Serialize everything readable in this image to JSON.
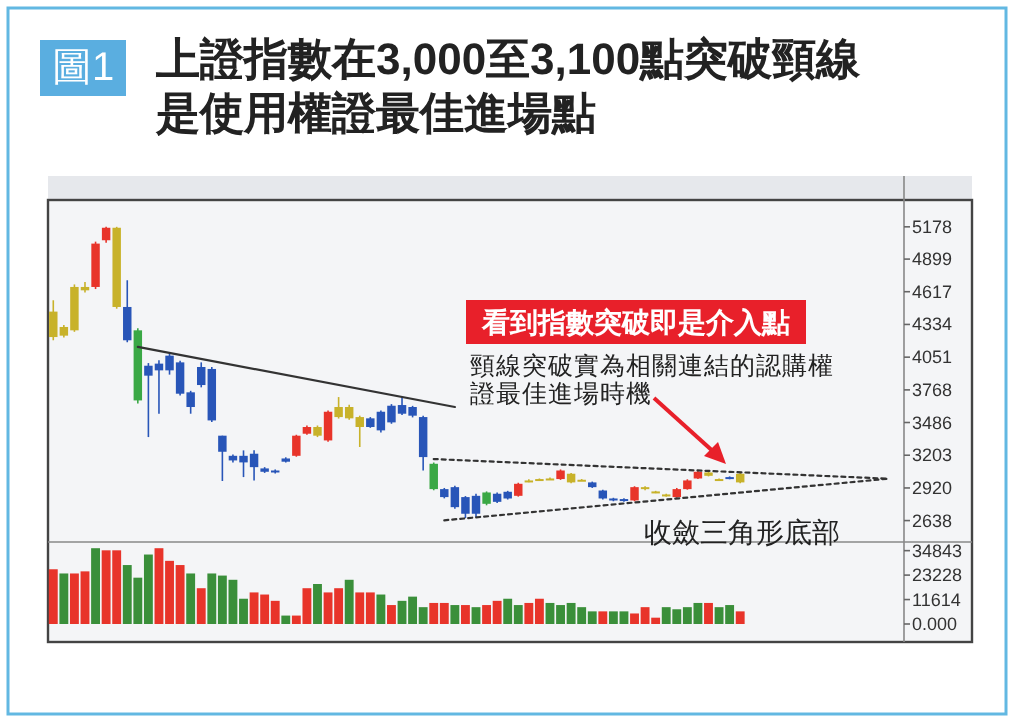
{
  "chart_data": [
    {
      "type": "candlestick",
      "title": "上證指數在3,000至3,100點突破頸線是使用權證最佳進場點",
      "categories": [
        null,
        null,
        null,
        null,
        null,
        null,
        null,
        null,
        null,
        null,
        null,
        null,
        null,
        null,
        null,
        null,
        null,
        null,
        null,
        null,
        null,
        null,
        null,
        null,
        null,
        null,
        null,
        null,
        null,
        null,
        null,
        null,
        null,
        null,
        null,
        null,
        null,
        null,
        null,
        null,
        null,
        null,
        null,
        null,
        null,
        null,
        null,
        null,
        null,
        null,
        null,
        null,
        null,
        null,
        null,
        null,
        null,
        null,
        null,
        null,
        null,
        null,
        null,
        null,
        null,
        null,
        null,
        null,
        null,
        null,
        null,
        null,
        null,
        null,
        null,
        null,
        null,
        null,
        null,
        null,
        null
      ],
      "ohlc": [
        [
          4225,
          4543,
          4197,
          4445
        ],
        [
          4237,
          4330,
          4220,
          4312
        ],
        [
          4283,
          4680,
          4270,
          4658
        ],
        [
          4629,
          4700,
          4610,
          4658
        ],
        [
          4658,
          5050,
          4640,
          5033
        ],
        [
          5062,
          5178,
          5040,
          5170
        ],
        [
          5170,
          5178,
          4470,
          4485
        ],
        [
          4485,
          4716,
          4180,
          4197
        ],
        [
          4283,
          4300,
          3650,
          3677
        ],
        [
          3977,
          4000,
          3360,
          3891
        ],
        [
          3995,
          4024,
          3562,
          3937
        ],
        [
          4064,
          4081,
          3900,
          3937
        ],
        [
          4006,
          4020,
          3720,
          3735
        ],
        [
          3747,
          3760,
          3562,
          3620
        ],
        [
          3966,
          4006,
          3790,
          3810
        ],
        [
          3949,
          3966,
          3490,
          3504
        ],
        [
          3372,
          3372,
          2980,
          3233
        ],
        [
          3198,
          3210,
          3140,
          3158
        ],
        [
          3198,
          3245,
          3014,
          3141
        ],
        [
          3216,
          3245,
          2985,
          3100
        ],
        [
          3089,
          3100,
          3050,
          3060
        ],
        [
          3071,
          3080,
          3045,
          3054
        ],
        [
          3175,
          3185,
          3140,
          3147
        ],
        [
          3198,
          3380,
          3190,
          3372
        ],
        [
          3389,
          3460,
          3380,
          3447
        ],
        [
          3447,
          3460,
          3360,
          3372
        ],
        [
          3331,
          3590,
          3320,
          3579
        ],
        [
          3620,
          3706,
          3520,
          3533
        ],
        [
          3620,
          3640,
          3510,
          3522
        ],
        [
          3533,
          3545,
          3274,
          3447
        ],
        [
          3522,
          3533,
          3440,
          3447
        ],
        [
          3579,
          3590,
          3400,
          3418
        ],
        [
          3631,
          3645,
          3475,
          3487
        ],
        [
          3637,
          3706,
          3550,
          3562
        ],
        [
          3620,
          3630,
          3530,
          3545
        ],
        [
          3533,
          3545,
          3071,
          3187
        ],
        [
          3129,
          3140,
          2900,
          2910
        ],
        [
          2910,
          2920,
          2830,
          2841
        ],
        [
          2927,
          2940,
          2740,
          2754
        ],
        [
          2841,
          2850,
          2660,
          2697
        ],
        [
          2852,
          2870,
          2668,
          2697
        ],
        [
          2881,
          2890,
          2770,
          2783
        ],
        [
          2870,
          2880,
          2790,
          2800
        ],
        [
          2887,
          2895,
          2820,
          2829
        ],
        [
          2852,
          2965,
          2845,
          2956
        ],
        [
          2979,
          2995,
          2970,
          2985
        ],
        [
          2997,
          3002,
          2985,
          2991
        ],
        [
          3002,
          3010,
          2990,
          2997
        ],
        [
          2997,
          3080,
          2990,
          3071
        ],
        [
          3043,
          3050,
          2960,
          2968
        ],
        [
          2991,
          2997,
          2980,
          2985
        ],
        [
          2968,
          2975,
          2920,
          2927
        ],
        [
          2898,
          2905,
          2820,
          2829
        ],
        [
          2829,
          2835,
          2805,
          2812
        ],
        [
          2824,
          2830,
          2800,
          2812
        ],
        [
          2812,
          2935,
          2805,
          2927
        ],
        [
          2927,
          2935,
          2900,
          2910
        ],
        [
          2890,
          2895,
          2875,
          2884
        ],
        [
          2864,
          2870,
          2845,
          2852
        ],
        [
          2841,
          2920,
          2835,
          2910
        ],
        [
          2910,
          2995,
          2905,
          2985
        ],
        [
          3002,
          3070,
          2997,
          3060
        ],
        [
          3054,
          3060,
          3020,
          3025
        ],
        [
          2997,
          3002,
          2985,
          2991
        ],
        [
          3014,
          3020,
          2995,
          3002
        ],
        [
          2968,
          3050,
          2960,
          3043
        ],
        null,
        null,
        null,
        null,
        null,
        null,
        null,
        null,
        null,
        null,
        null,
        null,
        null,
        null,
        null
      ],
      "colors": [
        "#c8b22a",
        "#c8b22a",
        "#c8b22a",
        "#c8b22a",
        "#e8342a",
        "#e8342a",
        "#c8b22a",
        "#2855b8",
        "#3aa845",
        "#2855b8",
        "#2855b8",
        "#2855b8",
        "#2855b8",
        "#2855b8",
        "#2855b8",
        "#2855b8",
        "#2855b8",
        "#2855b8",
        "#2855b8",
        "#2855b8",
        "#2855b8",
        "#2855b8",
        "#2855b8",
        "#e8342a",
        "#e8342a",
        "#c8b22a",
        "#e8342a",
        "#c8b22a",
        "#c8b22a",
        "#c8b22a",
        "#2855b8",
        "#2855b8",
        "#2855b8",
        "#2855b8",
        "#2855b8",
        "#2855b8",
        "#3aa845",
        "#2855b8",
        "#2855b8",
        "#2855b8",
        "#2855b8",
        "#3aa845",
        "#2855b8",
        "#2855b8",
        "#e8342a",
        "#c8b22a",
        "#c8b22a",
        "#c8b22a",
        "#e8342a",
        "#c8b22a",
        "#c8b22a",
        "#2855b8",
        "#2855b8",
        "#2855b8",
        "#2855b8",
        "#e8342a",
        "#c8b22a",
        "#c8b22a",
        "#c8b22a",
        "#e8342a",
        "#e8342a",
        "#e8342a",
        "#c8b22a",
        "#c8b22a",
        "#2855b8",
        "#c8b22a",
        null,
        null,
        null,
        null,
        null,
        null,
        null,
        null,
        null,
        null,
        null,
        null,
        null,
        null,
        null
      ],
      "series": [
        {
          "type": "line",
          "color": "#333333",
          "line_style": "solid",
          "values": [
            null,
            null,
            null,
            null,
            null,
            null,
            null,
            null,
            4140,
            null,
            null,
            null,
            null,
            null,
            null,
            null,
            null,
            null,
            null,
            null,
            null,
            null,
            null,
            null,
            null,
            null,
            null,
            null,
            null,
            null,
            null,
            null,
            null,
            null,
            null,
            null,
            null,
            null,
            3620.0,
            null,
            null,
            null,
            null,
            null,
            null,
            null,
            null,
            null,
            null,
            null,
            null,
            null,
            null,
            null,
            null,
            null,
            null,
            null,
            null,
            null,
            null,
            null,
            null,
            null,
            null,
            null,
            null,
            null,
            null,
            null,
            null,
            null,
            null,
            null,
            null,
            null,
            null,
            null,
            null,
            null,
            null
          ]
        },
        {
          "type": "line",
          "color": "#333333",
          "line_style": "dotted",
          "values": [
            null,
            null,
            null,
            null,
            null,
            null,
            null,
            null,
            null,
            null,
            null,
            null,
            null,
            null,
            null,
            null,
            null,
            null,
            null,
            null,
            null,
            null,
            null,
            null,
            null,
            null,
            null,
            null,
            null,
            null,
            null,
            null,
            null,
            null,
            null,
            null,
            3170.0,
            null,
            null,
            null,
            null,
            null,
            null,
            null,
            null,
            null,
            null,
            null,
            null,
            null,
            null,
            null,
            null,
            null,
            null,
            null,
            null,
            null,
            null,
            null,
            null,
            null,
            null,
            null,
            null,
            null,
            null,
            null,
            null,
            null,
            null,
            null,
            null,
            null,
            null,
            null,
            null,
            null,
            null,
            3000,
            null
          ]
        },
        {
          "type": "line",
          "color": "#333333",
          "line_style": "dotted",
          "values": [
            null,
            null,
            null,
            null,
            null,
            null,
            null,
            null,
            null,
            null,
            null,
            null,
            null,
            null,
            null,
            null,
            null,
            null,
            null,
            null,
            null,
            null,
            null,
            null,
            null,
            null,
            null,
            null,
            null,
            null,
            null,
            null,
            null,
            null,
            null,
            null,
            null,
            2640,
            null,
            null,
            null,
            null,
            null,
            null,
            null,
            null,
            null,
            null,
            null,
            null,
            null,
            null,
            null,
            null,
            null,
            null,
            null,
            null,
            null,
            null,
            null,
            null,
            null,
            null,
            null,
            null,
            null,
            null,
            null,
            null,
            null,
            null,
            null,
            null,
            null,
            null,
            null,
            null,
            null,
            3000,
            null
          ]
        }
      ],
      "ylim": [
        2470,
        5410
      ],
      "yticks": [
        2638,
        2920,
        3203,
        3486,
        3768,
        4051,
        4334,
        4617,
        4899,
        5178
      ],
      "tick_labels": "y",
      "annotations": [
        "圖1",
        "看到指數突破即是介入點",
        "頸線突破實為相關連結的認購權證最佳進場時機",
        "收斂三角形底部"
      ]
    },
    {
      "type": "bar",
      "categories": [
        null,
        null,
        null,
        null,
        null,
        null,
        null,
        null,
        null,
        null,
        null,
        null,
        null,
        null,
        null,
        null,
        null,
        null,
        null,
        null,
        null,
        null,
        null,
        null,
        null,
        null,
        null,
        null,
        null,
        null,
        null,
        null,
        null,
        null,
        null,
        null,
        null,
        null,
        null,
        null,
        null,
        null,
        null,
        null,
        null,
        null,
        null,
        null,
        null,
        null,
        null,
        null,
        null,
        null,
        null,
        null,
        null,
        null,
        null,
        null,
        null,
        null,
        null,
        null,
        null,
        null,
        null,
        null,
        null,
        null,
        null,
        null,
        null,
        null,
        null,
        null,
        null,
        null,
        null,
        null,
        null
      ],
      "values": [
        26000,
        24000,
        24000,
        25000,
        36000,
        35000,
        35000,
        28000,
        22000,
        33000,
        36000,
        30000,
        28000,
        24000,
        17000,
        24000,
        23000,
        21000,
        12000,
        15000,
        14000,
        11000,
        4000,
        4000,
        17000,
        19000,
        15000,
        17000,
        21000,
        15000,
        15000,
        14000,
        9000,
        11000,
        13000,
        8000,
        10000,
        10000,
        9000,
        9000,
        8000,
        9000,
        11000,
        12000,
        9000,
        10000,
        12000,
        10000,
        9000,
        10000,
        8000,
        6000,
        6000,
        6000,
        6000,
        5000,
        8000,
        3000,
        8000,
        7000,
        8000,
        10000,
        10000,
        8000,
        9000,
        6000,
        null,
        null,
        null,
        null,
        null,
        null,
        null,
        null,
        null,
        null,
        null,
        null,
        null,
        null,
        null
      ],
      "colors": [
        "#e8342a",
        "#3a8f3a",
        "#e8342a",
        "#e8342a",
        "#3a8f3a",
        "#e8342a",
        "#e8342a",
        "#3a8f3a",
        "#3a8f3a",
        "#3a8f3a",
        "#e8342a",
        "#e8342a",
        "#e8342a",
        "#3a8f3a",
        "#e8342a",
        "#3a8f3a",
        "#3a8f3a",
        "#3a8f3a",
        "#3a8f3a",
        "#e8342a",
        "#e8342a",
        "#e8342a",
        "#3a8f3a",
        "#e8342a",
        "#e8342a",
        "#3a8f3a",
        "#e8342a",
        "#e8342a",
        "#3a8f3a",
        "#e8342a",
        "#e8342a",
        "#3a8f3a",
        "#e8342a",
        "#3a8f3a",
        "#3a8f3a",
        "#3a8f3a",
        "#e8342a",
        "#e8342a",
        "#3a8f3a",
        "#e8342a",
        "#3a8f3a",
        "#e8342a",
        "#e8342a",
        "#3a8f3a",
        "#3a8f3a",
        "#e8342a",
        "#e8342a",
        "#3a8f3a",
        "#3a8f3a",
        "#3a8f3a",
        "#3a8f3a",
        "#3a8f3a",
        "#e8342a",
        "#3a8f3a",
        "#3a8f3a",
        "#e8342a",
        "#e8342a",
        "#e8342a",
        "#3a8f3a",
        "#3a8f3a",
        "#3a8f3a",
        "#3a8f3a",
        "#e8342a",
        "#3a8f3a",
        "#3a8f3a",
        "#e8342a",
        null,
        null,
        null,
        null,
        null,
        null,
        null,
        null,
        null,
        null,
        null,
        null,
        null,
        null,
        null
      ],
      "ylim": [
        0,
        38000
      ],
      "yticks": [
        {
          "value": 0,
          "label": "0.000"
        },
        11614,
        23228,
        34843
      ],
      "tick_labels": "y"
    }
  ]
}
